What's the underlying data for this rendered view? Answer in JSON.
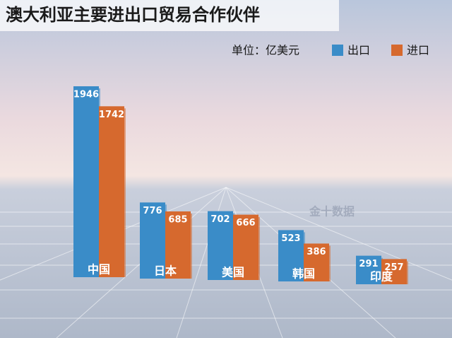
{
  "chart_data": {
    "type": "bar",
    "title": "澳大利亚主要进出口贸易合作伙伴",
    "unit": "单位：亿美元",
    "annotations": [
      "金十数据"
    ],
    "categories": [
      "中国",
      "日本",
      "美国",
      "韩国",
      "印度"
    ],
    "series": [
      {
        "name": "出口",
        "color": "#3a8cc8",
        "values": [
          1946,
          776,
          702,
          523,
          291
        ]
      },
      {
        "name": "进口",
        "color": "#d6692e",
        "values": [
          1742,
          685,
          666,
          386,
          257
        ]
      }
    ]
  }
}
